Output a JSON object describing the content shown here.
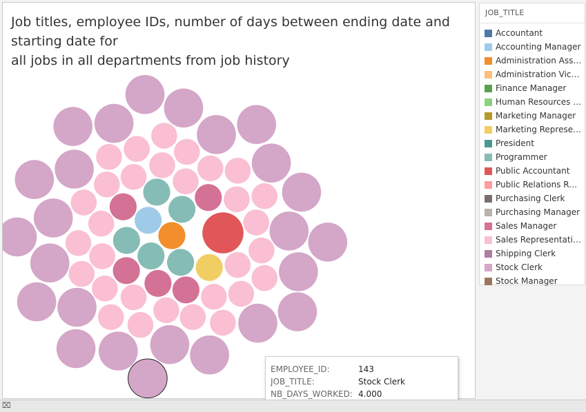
{
  "chart_data": {
    "type": "bubble",
    "title_lines": [
      "Job titles, employee IDs, number of days between ending date and",
      "starting date for",
      "all jobs in all departments from job history"
    ],
    "size_field": "NB_DAYS_WORKED",
    "color_field": "JOB_TITLE",
    "legend": {
      "title": "JOB_TITLE",
      "placement": "right",
      "items": [
        {
          "label": "Accountant",
          "color": "#4e79a7"
        },
        {
          "label": "Accounting Manager",
          "color": "#a0cbe8"
        },
        {
          "label": "Administration Assistant",
          "color": "#f28e2b"
        },
        {
          "label": "Administration Vice President",
          "color": "#ffbe7d"
        },
        {
          "label": "Finance Manager",
          "color": "#59a14f"
        },
        {
          "label": "Human Resources Representative",
          "color": "#8cd17d"
        },
        {
          "label": "Marketing Manager",
          "color": "#b6992d"
        },
        {
          "label": "Marketing Representative",
          "color": "#f1ce63"
        },
        {
          "label": "President",
          "color": "#499894"
        },
        {
          "label": "Programmer",
          "color": "#86bcb6"
        },
        {
          "label": "Public Accountant",
          "color": "#e15759"
        },
        {
          "label": "Public Relations Representative",
          "color": "#ff9d9a"
        },
        {
          "label": "Purchasing Clerk",
          "color": "#79706e"
        },
        {
          "label": "Purchasing Manager",
          "color": "#bab0ac"
        },
        {
          "label": "Sales Manager",
          "color": "#d37295"
        },
        {
          "label": "Sales Representative",
          "color": "#fabfd2"
        },
        {
          "label": "Shipping Clerk",
          "color": "#b07aa1"
        },
        {
          "label": "Stock Clerk",
          "color": "#d4a6c8"
        },
        {
          "label": "Stock Manager",
          "color": "#9d7660"
        }
      ]
    },
    "bubbles": [
      {
        "job": "Public Accountant",
        "size": 3.0
      },
      {
        "job": "Administration Assistant",
        "size": 1.3
      },
      {
        "job": "Accounting Manager",
        "size": 1.3
      },
      {
        "job": "Programmer",
        "size": 1.3
      },
      {
        "job": "Programmer",
        "size": 1.3
      },
      {
        "job": "Programmer",
        "size": 1.3
      },
      {
        "job": "Programmer",
        "size": 1.3
      },
      {
        "job": "Programmer",
        "size": 1.3
      },
      {
        "job": "Marketing Representative",
        "size": 1.3
      },
      {
        "job": "Sales Manager",
        "size": 1.3
      },
      {
        "job": "Sales Manager",
        "size": 1.3
      },
      {
        "job": "Sales Manager",
        "size": 1.3
      },
      {
        "job": "Sales Manager",
        "size": 1.3
      },
      {
        "job": "Sales Manager",
        "size": 1.3
      },
      {
        "job": "Sales Representative",
        "size": 1.2
      },
      {
        "job": "Sales Representative",
        "size": 1.2
      },
      {
        "job": "Sales Representative",
        "size": 1.2
      },
      {
        "job": "Sales Representative",
        "size": 1.2
      },
      {
        "job": "Sales Representative",
        "size": 1.2
      },
      {
        "job": "Sales Representative",
        "size": 1.2
      },
      {
        "job": "Sales Representative",
        "size": 1.2
      },
      {
        "job": "Sales Representative",
        "size": 1.2
      },
      {
        "job": "Sales Representative",
        "size": 1.2
      },
      {
        "job": "Sales Representative",
        "size": 1.2
      },
      {
        "job": "Sales Representative",
        "size": 1.2
      },
      {
        "job": "Sales Representative",
        "size": 1.2
      },
      {
        "job": "Sales Representative",
        "size": 1.2
      },
      {
        "job": "Sales Representative",
        "size": 1.2
      },
      {
        "job": "Sales Representative",
        "size": 1.2
      },
      {
        "job": "Sales Representative",
        "size": 1.2
      },
      {
        "job": "Sales Representative",
        "size": 1.2
      },
      {
        "job": "Sales Representative",
        "size": 1.2
      },
      {
        "job": "Sales Representative",
        "size": 1.2
      },
      {
        "job": "Sales Representative",
        "size": 1.2
      },
      {
        "job": "Sales Representative",
        "size": 1.2
      },
      {
        "job": "Sales Representative",
        "size": 1.2
      },
      {
        "job": "Sales Representative",
        "size": 1.2
      },
      {
        "job": "Sales Representative",
        "size": 1.2
      },
      {
        "job": "Sales Representative",
        "size": 1.2
      },
      {
        "job": "Sales Representative",
        "size": 1.2
      },
      {
        "job": "Sales Representative",
        "size": 1.2
      },
      {
        "job": "Sales Representative",
        "size": 1.2
      },
      {
        "job": "Sales Representative",
        "size": 1.2
      },
      {
        "job": "Sales Representative",
        "size": 1.2
      },
      {
        "job": "Stock Clerk",
        "size": 2.7
      },
      {
        "job": "Stock Clerk",
        "size": 2.7
      },
      {
        "job": "Stock Clerk",
        "size": 2.7
      },
      {
        "job": "Stock Clerk",
        "size": 2.7
      },
      {
        "job": "Stock Clerk",
        "size": 2.7
      },
      {
        "job": "Stock Clerk",
        "size": 2.7
      },
      {
        "job": "Stock Clerk",
        "size": 2.7
      },
      {
        "job": "Stock Clerk",
        "size": 2.7
      },
      {
        "job": "Stock Clerk",
        "size": 2.7
      },
      {
        "job": "Stock Clerk",
        "size": 2.7
      },
      {
        "job": "Stock Clerk",
        "size": 2.7
      },
      {
        "job": "Stock Clerk",
        "size": 2.7
      },
      {
        "job": "Stock Clerk",
        "size": 2.7
      },
      {
        "job": "Stock Clerk",
        "size": 2.7
      },
      {
        "job": "Stock Clerk",
        "size": 2.7
      },
      {
        "job": "Stock Clerk",
        "size": 2.7
      },
      {
        "job": "Stock Clerk",
        "size": 2.7
      },
      {
        "job": "Stock Clerk",
        "size": 2.7
      },
      {
        "job": "Stock Clerk",
        "size": 2.7
      },
      {
        "job": "Stock Clerk",
        "size": 2.7
      },
      {
        "job": "Stock Clerk",
        "size": 2.7
      },
      {
        "job": "Stock Clerk",
        "size": 2.7
      },
      {
        "job": "Stock Clerk",
        "size": 2.7
      },
      {
        "job": "Stock Clerk",
        "size": 2.7
      },
      {
        "job": "Stock Clerk",
        "size": 2.7
      }
    ],
    "highlighted_index": 68
  },
  "tooltip": {
    "rows": [
      {
        "key": "EMPLOYEE_ID:",
        "value": "143"
      },
      {
        "key": "JOB_TITLE:",
        "value": "Stock Clerk"
      },
      {
        "key": "NB_DAYS_WORKED:",
        "value": "4.000"
      }
    ]
  }
}
